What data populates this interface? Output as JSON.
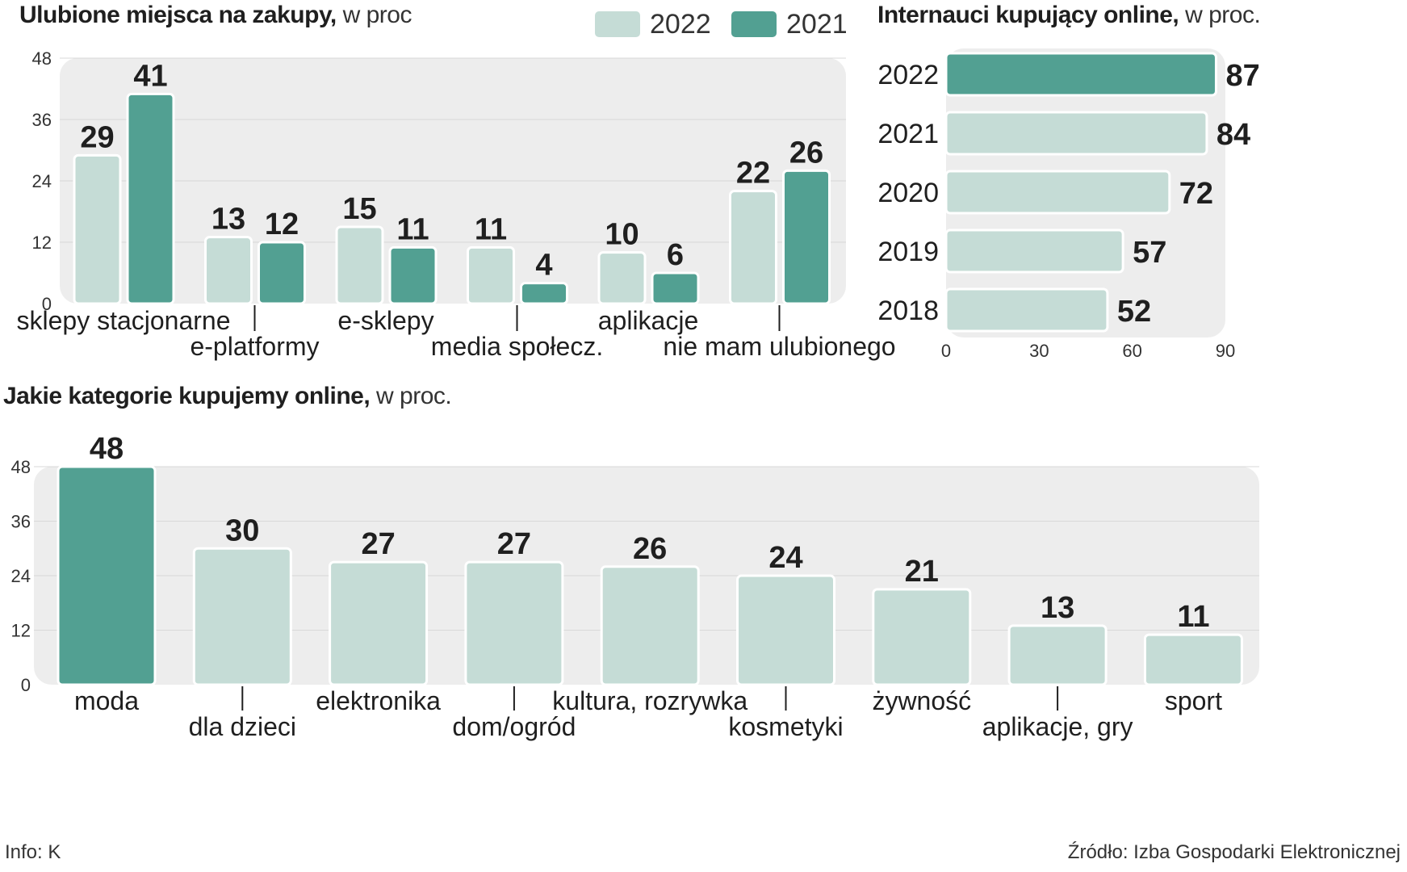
{
  "colors": {
    "light": "#c5dcd6",
    "dark": "#52a092",
    "panel": "#ededed",
    "stroke": "#ffffff"
  },
  "titles": {
    "places_bold": "Ulubione miejsca na zakupy,",
    "places_unit": "w proc",
    "online_bold": "Internauci kupujący online,",
    "online_unit": "w proc.",
    "categories_bold": "Jakie kategorie kupujemy online,",
    "categories_unit": "w proc."
  },
  "footer": {
    "info": "Info: K",
    "source": "Źródło: Izba Gospodarki Elektronicznej"
  },
  "chart_data": [
    {
      "type": "bar",
      "title": "Ulubione miejsca na zakupy, w proc",
      "categories": [
        "sklepy stacjonarne",
        "e-platformy",
        "e-sklepy",
        "media społecz.",
        "aplikacje",
        "nie mam ulubionego"
      ],
      "series": [
        {
          "name": "2022",
          "values": [
            29,
            13,
            15,
            11,
            10,
            22
          ]
        },
        {
          "name": "2021",
          "values": [
            41,
            12,
            11,
            4,
            6,
            26
          ]
        }
      ],
      "yticks": [
        0,
        12,
        24,
        36,
        48
      ],
      "ylim": [
        0,
        48
      ],
      "legend": "top-right"
    },
    {
      "type": "bar",
      "orientation": "horizontal",
      "title": "Internauci kupujący online, w proc.",
      "categories": [
        "2022",
        "2021",
        "2020",
        "2019",
        "2018"
      ],
      "values": [
        87,
        84,
        72,
        57,
        52
      ],
      "xticks": [
        0,
        30,
        60,
        90
      ],
      "xlim": [
        0,
        90
      ]
    },
    {
      "type": "bar",
      "title": "Jakie kategorie kupujemy online, w proc.",
      "categories": [
        "moda",
        "dla dzieci",
        "elektronika",
        "dom/ogród",
        "kultura, rozrywka",
        "kosmetyki",
        "żywność",
        "aplikacje, gry",
        "sport"
      ],
      "values": [
        48,
        30,
        27,
        27,
        26,
        24,
        21,
        13,
        11
      ],
      "yticks": [
        0,
        12,
        24,
        36,
        48
      ],
      "ylim": [
        0,
        48
      ]
    }
  ]
}
